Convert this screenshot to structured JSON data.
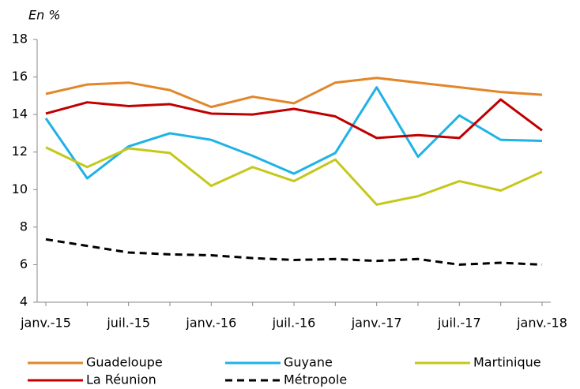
{
  "chart_data": {
    "type": "line",
    "title": "En %",
    "categories": [
      "janv.-15",
      null,
      "juil.-15",
      null,
      "janv.-16",
      null,
      "juil.-16",
      null,
      "janv.-17",
      null,
      "juil.-17",
      null,
      "janv.-18"
    ],
    "series": [
      {
        "name": "Guadeloupe",
        "color": "#e2862a",
        "values": [
          15.1,
          15.6,
          15.7,
          15.3,
          14.4,
          14.95,
          14.6,
          15.7,
          15.95,
          15.7,
          15.45,
          15.2,
          15.05
        ]
      },
      {
        "name": "Guyane",
        "color": "#1fb2e6",
        "values": [
          13.8,
          10.6,
          12.3,
          13.0,
          12.65,
          11.8,
          10.85,
          11.95,
          15.45,
          11.75,
          13.95,
          12.65,
          12.6
        ]
      },
      {
        "name": "Martinique",
        "color": "#c5c81a",
        "values": [
          12.25,
          11.2,
          12.2,
          11.95,
          10.2,
          11.2,
          10.45,
          11.6,
          9.2,
          9.65,
          10.45,
          9.95,
          10.95
        ]
      },
      {
        "name": "La Réunion",
        "color": "#c00000",
        "values": [
          14.05,
          14.65,
          14.45,
          14.55,
          14.05,
          14.0,
          14.3,
          13.9,
          12.75,
          12.9,
          12.75,
          14.8,
          13.15
        ]
      },
      {
        "name": "Métropole",
        "color": "#000000",
        "dashed": true,
        "values": [
          7.35,
          7.0,
          6.65,
          6.55,
          6.5,
          6.35,
          6.25,
          6.3,
          6.2,
          6.3,
          6.0,
          6.1,
          6.0
        ]
      }
    ],
    "ylim": [
      4,
      18
    ],
    "yticks": [
      4,
      6,
      8,
      10,
      12,
      14,
      16,
      18
    ],
    "grid": false,
    "legend": "bottom"
  }
}
